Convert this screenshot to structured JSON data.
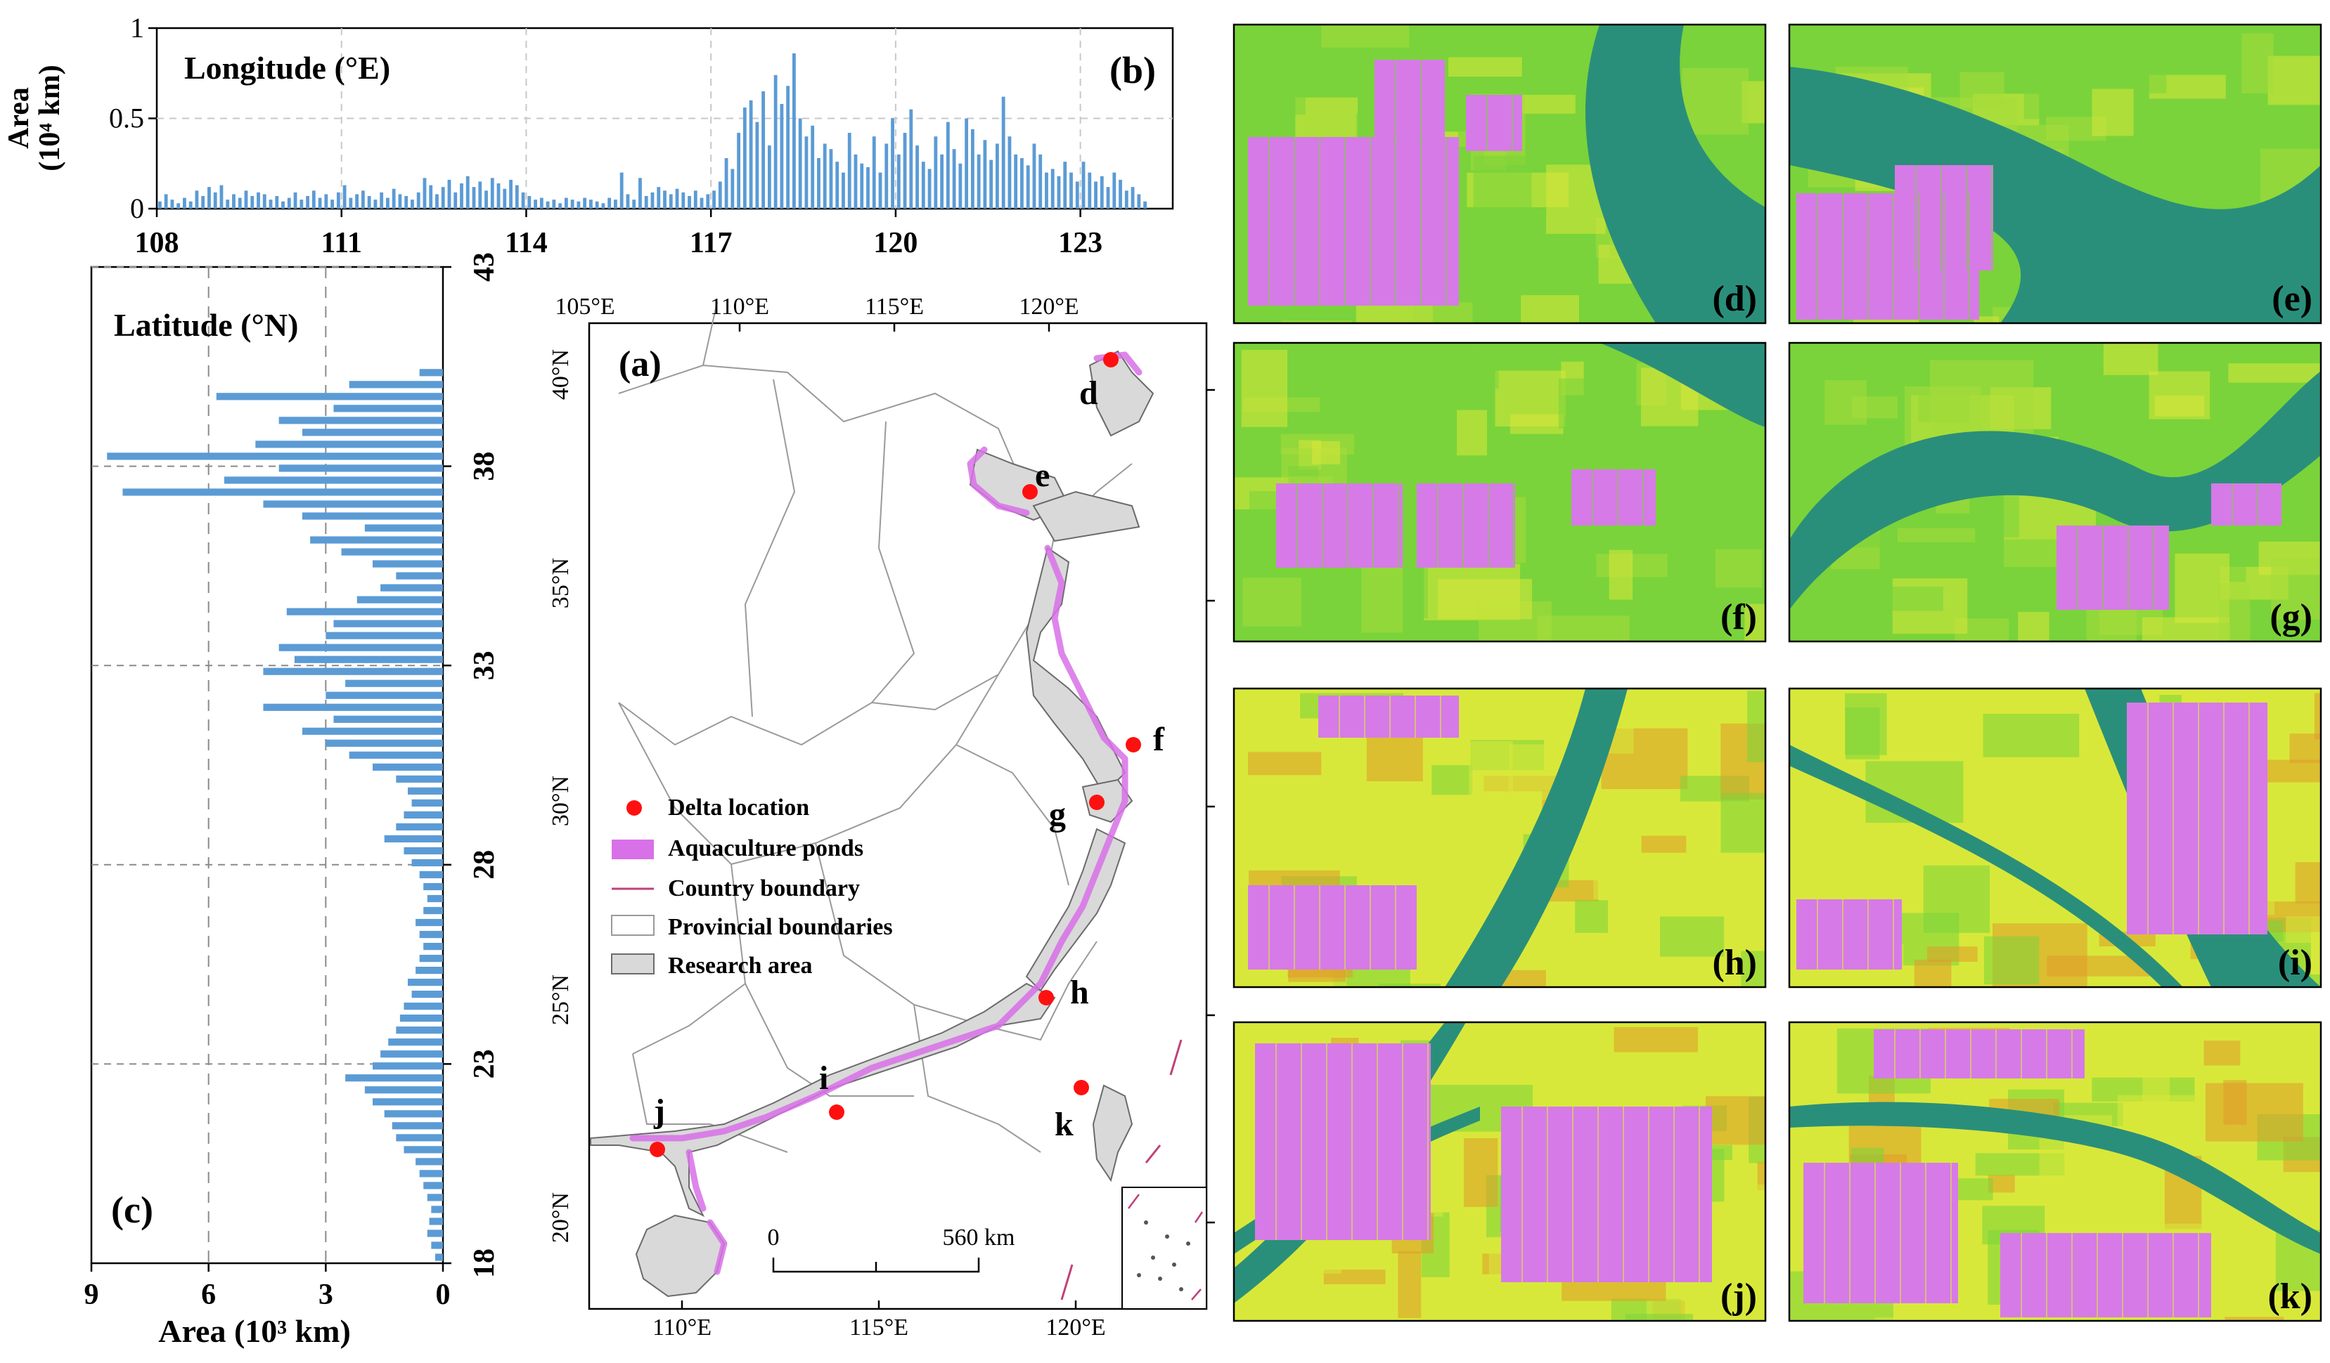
{
  "chart_data": [
    {
      "panel": "(b)",
      "type": "bar",
      "title": "Longitude (°E)",
      "ylabel": "Area (10⁴ km)",
      "ylabel_lines": [
        "Area",
        "(10⁴ km)"
      ],
      "xlim": [
        108,
        124.5
      ],
      "ylim": [
        0,
        1
      ],
      "xticks": [
        108,
        111,
        114,
        117,
        120,
        123
      ],
      "xtick_labels": [
        "108",
        "111",
        "114",
        "117",
        "120",
        "123"
      ],
      "yticks": [
        0,
        0.5,
        1
      ],
      "ytick_labels": [
        "0",
        "0.5",
        "1"
      ],
      "grid": true,
      "color": "#5b9bd5",
      "x": [
        108.05,
        108.15,
        108.25,
        108.35,
        108.45,
        108.55,
        108.65,
        108.75,
        108.85,
        108.95,
        109.05,
        109.15,
        109.25,
        109.35,
        109.45,
        109.55,
        109.65,
        109.75,
        109.85,
        109.95,
        110.05,
        110.15,
        110.25,
        110.35,
        110.45,
        110.55,
        110.65,
        110.75,
        110.85,
        110.95,
        111.05,
        111.15,
        111.25,
        111.35,
        111.45,
        111.55,
        111.65,
        111.75,
        111.85,
        111.95,
        112.05,
        112.15,
        112.25,
        112.35,
        112.45,
        112.55,
        112.65,
        112.75,
        112.85,
        112.95,
        113.05,
        113.15,
        113.25,
        113.35,
        113.45,
        113.55,
        113.65,
        113.75,
        113.85,
        113.95,
        114.05,
        114.15,
        114.25,
        114.35,
        114.45,
        114.55,
        114.65,
        114.75,
        114.85,
        114.95,
        115.05,
        115.15,
        115.25,
        115.35,
        115.45,
        115.55,
        115.65,
        115.75,
        115.85,
        115.95,
        116.05,
        116.15,
        116.25,
        116.35,
        116.45,
        116.55,
        116.65,
        116.75,
        116.85,
        116.95,
        117.05,
        117.15,
        117.25,
        117.35,
        117.45,
        117.55,
        117.65,
        117.75,
        117.85,
        117.95,
        118.05,
        118.15,
        118.25,
        118.35,
        118.45,
        118.55,
        118.65,
        118.75,
        118.85,
        118.95,
        119.05,
        119.15,
        119.25,
        119.35,
        119.45,
        119.55,
        119.65,
        119.75,
        119.85,
        119.95,
        120.05,
        120.15,
        120.25,
        120.35,
        120.45,
        120.55,
        120.65,
        120.75,
        120.85,
        120.95,
        121.05,
        121.15,
        121.25,
        121.35,
        121.45,
        121.55,
        121.65,
        121.75,
        121.85,
        121.95,
        122.05,
        122.15,
        122.25,
        122.35,
        122.45,
        122.55,
        122.65,
        122.75,
        122.85,
        122.95,
        123.05,
        123.15,
        123.25,
        123.35,
        123.45,
        123.55,
        123.65,
        123.75,
        123.85,
        123.95,
        124.05
      ],
      "values": [
        0.04,
        0.08,
        0.05,
        0.03,
        0.06,
        0.04,
        0.1,
        0.07,
        0.12,
        0.09,
        0.13,
        0.05,
        0.08,
        0.06,
        0.1,
        0.07,
        0.09,
        0.08,
        0.05,
        0.07,
        0.04,
        0.06,
        0.09,
        0.05,
        0.07,
        0.1,
        0.06,
        0.08,
        0.05,
        0.09,
        0.13,
        0.06,
        0.08,
        0.1,
        0.07,
        0.05,
        0.09,
        0.06,
        0.11,
        0.08,
        0.07,
        0.05,
        0.09,
        0.17,
        0.13,
        0.08,
        0.12,
        0.16,
        0.09,
        0.14,
        0.18,
        0.12,
        0.15,
        0.1,
        0.17,
        0.14,
        0.11,
        0.16,
        0.13,
        0.09,
        0.07,
        0.05,
        0.06,
        0.04,
        0.05,
        0.03,
        0.06,
        0.05,
        0.04,
        0.06,
        0.05,
        0.04,
        0.03,
        0.06,
        0.05,
        0.2,
        0.08,
        0.05,
        0.17,
        0.07,
        0.09,
        0.12,
        0.1,
        0.08,
        0.11,
        0.09,
        0.07,
        0.1,
        0.06,
        0.08,
        0.1,
        0.15,
        0.28,
        0.22,
        0.42,
        0.56,
        0.6,
        0.48,
        0.65,
        0.35,
        0.74,
        0.58,
        0.68,
        0.86,
        0.5,
        0.4,
        0.46,
        0.28,
        0.36,
        0.33,
        0.26,
        0.2,
        0.42,
        0.3,
        0.25,
        0.23,
        0.4,
        0.2,
        0.36,
        0.5,
        0.3,
        0.42,
        0.55,
        0.35,
        0.26,
        0.22,
        0.4,
        0.3,
        0.48,
        0.33,
        0.25,
        0.5,
        0.44,
        0.3,
        0.38,
        0.27,
        0.36,
        0.62,
        0.4,
        0.3,
        0.28,
        0.24,
        0.36,
        0.3,
        0.2,
        0.22,
        0.18,
        0.26,
        0.2,
        0.15,
        0.26,
        0.2,
        0.15,
        0.18,
        0.12,
        0.2,
        0.16,
        0.1,
        0.12,
        0.08,
        0.04
      ]
    },
    {
      "panel": "(c)",
      "type": "bar",
      "orientation": "horizontal",
      "title": "Latitude (°N)",
      "xlabel": "Area (10³ km)",
      "xlim": [
        9,
        0
      ],
      "ylim": [
        18,
        43
      ],
      "xticks": [
        9,
        6,
        3,
        0
      ],
      "xtick_labels": [
        "9",
        "6",
        "3",
        "0"
      ],
      "yticks": [
        18,
        23,
        28,
        33,
        38,
        43
      ],
      "ytick_labels": [
        "18",
        "23",
        "28",
        "33",
        "38",
        "43"
      ],
      "grid": true,
      "color": "#5b9bd5",
      "y": [
        18.15,
        18.45,
        18.75,
        19.05,
        19.35,
        19.65,
        19.95,
        20.25,
        20.55,
        20.85,
        21.15,
        21.45,
        21.75,
        22.05,
        22.35,
        22.65,
        22.95,
        23.25,
        23.55,
        23.85,
        24.15,
        24.45,
        24.75,
        25.05,
        25.35,
        25.65,
        25.95,
        26.25,
        26.55,
        26.85,
        27.15,
        27.45,
        27.75,
        28.05,
        28.35,
        28.65,
        28.95,
        29.25,
        29.55,
        29.85,
        30.15,
        30.45,
        30.75,
        31.05,
        31.35,
        31.65,
        31.95,
        32.25,
        32.55,
        32.85,
        33.15,
        33.45,
        33.75,
        34.05,
        34.35,
        34.65,
        34.95,
        35.25,
        35.55,
        35.85,
        36.15,
        36.45,
        36.75,
        37.05,
        37.35,
        37.65,
        37.95,
        38.25,
        38.55,
        38.85,
        39.15,
        39.45,
        39.75,
        40.05,
        40.35
      ],
      "values": [
        0.2,
        0.3,
        0.4,
        0.35,
        0.3,
        0.4,
        0.5,
        0.6,
        0.7,
        1.0,
        1.2,
        1.3,
        1.5,
        1.8,
        2.0,
        2.5,
        1.8,
        1.6,
        1.4,
        1.2,
        1.1,
        1.0,
        0.8,
        0.9,
        0.7,
        0.6,
        0.5,
        0.6,
        0.7,
        0.5,
        0.4,
        0.5,
        0.6,
        0.8,
        1.0,
        1.5,
        1.2,
        1.0,
        0.8,
        0.9,
        1.2,
        1.8,
        2.4,
        3.0,
        3.6,
        2.8,
        4.6,
        3.0,
        2.5,
        4.6,
        3.8,
        4.2,
        3.0,
        2.8,
        4.0,
        2.2,
        1.6,
        1.2,
        1.8,
        2.6,
        3.4,
        2.0,
        3.6,
        4.6,
        8.2,
        5.6,
        4.2,
        8.6,
        4.8,
        3.6,
        4.2,
        2.8,
        5.8,
        2.4,
        0.6
      ]
    }
  ],
  "panel_b": {
    "label": "(b)"
  },
  "panel_c": {
    "label": "(c)"
  },
  "map": {
    "label": "(a)",
    "lon_ticks_top": [
      "105°E",
      "110°E",
      "115°E",
      "120°E"
    ],
    "lon_ticks_bottom": [
      "110°E",
      "115°E",
      "120°E"
    ],
    "lat_ticks": [
      "40°N",
      "35°N",
      "30°N",
      "25°N",
      "20°N"
    ],
    "legend": {
      "delta_location": "Delta location",
      "aquaculture_ponds": "Aquaculture ponds",
      "country_boundary": "Country boundary",
      "provincial_boundaries": "Provincial boundaries",
      "research_area": "Research area"
    },
    "scalebar": {
      "start": "0",
      "end": "560 km"
    },
    "sites": [
      "d",
      "e",
      "f",
      "g",
      "h",
      "i",
      "j",
      "k"
    ],
    "colors": {
      "site": "#ff1010",
      "aquaculture": "#d870e8",
      "research_area": "#d9d9d9",
      "country_boundary": "#c0407a"
    }
  },
  "tiles": [
    {
      "label": "(d)"
    },
    {
      "label": "(e)"
    },
    {
      "label": "(f)"
    },
    {
      "label": "(g)"
    },
    {
      "label": "(h)"
    },
    {
      "label": "(i)"
    },
    {
      "label": "(j)"
    },
    {
      "label": "(k)"
    }
  ],
  "tile_colors": {
    "water": "#2a8f7a",
    "vegetation": "#7ad33a",
    "bright": "#d8e83a",
    "pond": "#d67ae8",
    "urban": "#e09a2a"
  }
}
